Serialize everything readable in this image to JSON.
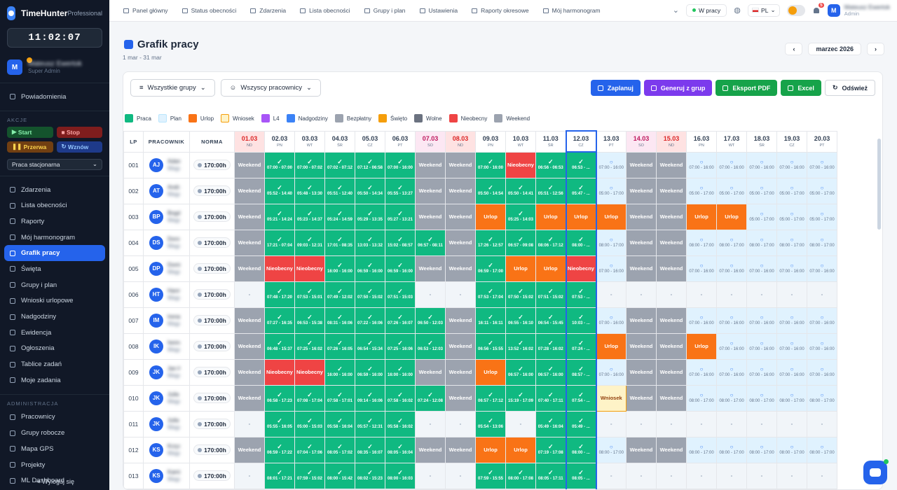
{
  "app": {
    "name": "TimeHunter",
    "plan": "Professional",
    "clock": "11:02:07"
  },
  "user": {
    "initial": "M",
    "name": "Mateusz Ewertok",
    "role": "Super Admin",
    "top_role": "Admin"
  },
  "sidebar": {
    "notifications": "Powiadomienia",
    "actions_header": "AKCJE",
    "actions": [
      "Start",
      "Stop",
      "Przerwa",
      "Wznów"
    ],
    "work_mode": "Praca stacjonarna",
    "items": [
      "Zdarzenia",
      "Lista obecności",
      "Raporty",
      "Mój harmonogram",
      "Grafik pracy",
      "Święta",
      "Grupy i plan",
      "Wnioski urlopowe",
      "Nadgodziny",
      "Ewidencja",
      "Ogłoszenia",
      "Tablice zadań",
      "Moje zadania"
    ],
    "admin_header": "ADMINISTRACJA",
    "admin_items": [
      "Pracownicy",
      "Grupy robocze",
      "Mapa GPS",
      "Projekty",
      "ML Dashboard"
    ],
    "logout": "Wyloguj się"
  },
  "topnav": [
    "Panel główny",
    "Status obecności",
    "Zdarzenia",
    "Lista obecności",
    "Grupy i plan",
    "Ustawienia",
    "Raporty okresowe",
    "Mój harmonogram"
  ],
  "status": "W pracy",
  "lang": "PL",
  "notif_count": "5",
  "page": {
    "title": "Grafik pracy",
    "range": "1 mar - 31 mar",
    "month": "marzec 2026"
  },
  "filters": {
    "groups": "Wszystkie grupy",
    "employees": "Wszyscy pracownicy"
  },
  "buttons": {
    "plan": "Zaplanuj",
    "gen": "Generuj z grup",
    "pdf": "Eksport PDF",
    "excel": "Excel",
    "refresh": "Odśwież"
  },
  "legend": [
    "Praca",
    "Plan",
    "Urlop",
    "Wniosek",
    "L4",
    "Nadgodziny",
    "Bezpłatny",
    "Święto",
    "Wolne",
    "Nieobecny",
    "Weekend"
  ],
  "legend_colors": [
    "#10b981",
    "#e0f2fe",
    "#f97316",
    "#fef3c7",
    "#a855f7",
    "#3b82f6",
    "#9ca3af",
    "#f59e0b",
    "#6b7280",
    "#ef4444",
    "#9ca3af"
  ],
  "columns": {
    "lp": "LP",
    "emp": "PRACOWNIK",
    "norm": "NORMA"
  },
  "days": [
    {
      "d": "01.03",
      "n": "ND",
      "t": "hol"
    },
    {
      "d": "02.03",
      "n": "PN",
      "t": ""
    },
    {
      "d": "03.03",
      "n": "WT",
      "t": ""
    },
    {
      "d": "04.03",
      "n": "ŚR",
      "t": ""
    },
    {
      "d": "05.03",
      "n": "CZ",
      "t": ""
    },
    {
      "d": "06.03",
      "n": "PT",
      "t": ""
    },
    {
      "d": "07.03",
      "n": "SO",
      "t": "wkd"
    },
    {
      "d": "08.03",
      "n": "ND",
      "t": "hol"
    },
    {
      "d": "09.03",
      "n": "PN",
      "t": ""
    },
    {
      "d": "10.03",
      "n": "WT",
      "t": ""
    },
    {
      "d": "11.03",
      "n": "ŚR",
      "t": ""
    },
    {
      "d": "12.03",
      "n": "CZ",
      "t": "tod"
    },
    {
      "d": "13.03",
      "n": "PT",
      "t": ""
    },
    {
      "d": "14.03",
      "n": "SO",
      "t": "wkd"
    },
    {
      "d": "15.03",
      "n": "ND",
      "t": "hol"
    },
    {
      "d": "16.03",
      "n": "PN",
      "t": ""
    },
    {
      "d": "17.03",
      "n": "WT",
      "t": ""
    },
    {
      "d": "18.03",
      "n": "ŚR",
      "t": ""
    },
    {
      "d": "19.03",
      "n": "CZ",
      "t": ""
    },
    {
      "d": "20.03",
      "n": "PT",
      "t": ""
    }
  ],
  "rows": [
    {
      "lp": "001",
      "ini": "AJ",
      "name": "Adam Jaski",
      "sub": "Magazyn 01 ·",
      "norm": "170:00h",
      "cells": [
        "Weekend",
        "W|07:00 - 07:00",
        "W|07:00 - 07:02",
        "W|07:02 - 07:12",
        "W|07:12 - 06:58",
        "W|07:00 - 16:00",
        "Weekend",
        "Weekend",
        "W|07:00 - 16:00",
        "Nieobecny",
        "W|06:56 - 06:53",
        "W|06:53 - ...",
        "P|07:00 - 16:00",
        "Weekend",
        "Weekend",
        "P|07:00 - 16:00",
        "P|07:00 - 16:00",
        "P|07:00 - 16:00",
        "P|07:00 - 16:00",
        "P|07:00 - 16:00"
      ]
    },
    {
      "lp": "002",
      "ini": "AT",
      "name": "Andrzej Trzaskowski",
      "sub": "Magazyn 02 ·",
      "norm": "170:00h",
      "cells": [
        "Weekend",
        "W|05:52 - 14:40",
        "W|05:48 - 13:30",
        "W|05:51 - 12:40",
        "W|05:50 - 14:34",
        "W|05:55 - 13:27",
        "Weekend",
        "Weekend",
        "W|05:50 - 14:54",
        "W|05:50 - 14:41",
        "W|05:51 - 12:56",
        "W|05:47 - ...",
        "P|05:00 - 17:00",
        "Weekend",
        "Weekend",
        "P|05:00 - 17:00",
        "P|05:00 - 17:00",
        "P|05:00 - 17:00",
        "P|05:00 - 17:00",
        "P|05:00 - 17:00"
      ]
    },
    {
      "lp": "003",
      "ini": "BP",
      "name": "Bogdan Pietrzak",
      "sub": "Magazyn 01 ·",
      "norm": "170:00h",
      "cells": [
        "Weekend",
        "W|05:21 - 14:24",
        "W|05:23 - 14:37",
        "W|05:24 - 14:59",
        "W|05:29 - 13:35",
        "W|05:27 - 13:21",
        "Weekend",
        "Weekend",
        "Urlop",
        "W|05:25 - 14:03",
        "Urlop",
        "Urlop",
        "Urlop",
        "Weekend",
        "Weekend",
        "Urlop",
        "Urlop",
        "P|05:00 - 17:00",
        "P|05:00 - 17:00",
        "P|05:00 - 17:00"
      ]
    },
    {
      "lp": "004",
      "ini": "DS",
      "name": "Dorota Sobczyk",
      "sub": "Magazyn 02 ·",
      "norm": "170:00h",
      "cells": [
        "Weekend",
        "W|17:21 - 07:04",
        "W|09:03 - 12:31",
        "W|17:01 - 08:35",
        "W|13:03 - 13:32",
        "W|15:02 - 08:57",
        "W|06:57 - 08:11",
        "Weekend",
        "W|17:26 - 12:57",
        "W|06:57 - 09:08",
        "W|08:06 - 17:12",
        "W|08:00 - ...",
        "P|08:00 - 17:00",
        "Weekend",
        "Weekend",
        "P|08:00 - 17:00",
        "P|08:00 - 17:00",
        "P|08:00 - 17:00",
        "P|08:00 - 17:00",
        "P|08:00 - 17:00"
      ]
    },
    {
      "lp": "005",
      "ini": "DP",
      "name": "Dominik Pergi",
      "sub": "Magazyn 01 ·",
      "norm": "170:00h",
      "cells": [
        "Weekend",
        "Nieobecny",
        "Nieobecny",
        "W|16:00 - 16:00",
        "W|06:59 - 16:00",
        "W|06:59 - 16:00",
        "Weekend",
        "Weekend",
        "W|06:59 - 17:00",
        "Urlop",
        "Urlop",
        "Nieobecny",
        "P|07:00 - 16:00",
        "Weekend",
        "Weekend",
        "P|07:00 - 16:00",
        "P|07:00 - 16:00",
        "P|07:00 - 16:00",
        "P|07:00 - 16:00",
        "P|07:00 - 16:00"
      ]
    },
    {
      "lp": "006",
      "ini": "HT",
      "name": "Hanna Tadeusz",
      "sub": "Magazyn 02 ·",
      "norm": "170:00h",
      "cells": [
        "-",
        "W|07:48 - 17:20",
        "W|07:53 - 15:01",
        "W|07:49 - 12:02",
        "W|07:50 - 15:02",
        "W|07:51 - 15:03",
        "-",
        "-",
        "W|07:53 - 17:04",
        "W|07:50 - 15:02",
        "W|07:51 - 15:02",
        "W|07:53 - ...",
        "-",
        "-",
        "-",
        "-",
        "-",
        "-",
        "-",
        "-"
      ]
    },
    {
      "lp": "007",
      "ini": "IM",
      "name": "Irena Marchwia",
      "sub": "Magazyn 01 ·",
      "norm": "170:00h",
      "cells": [
        "Weekend",
        "W|07:27 - 16:35",
        "W|06:53 - 15:38",
        "W|08:31 - 16:06",
        "W|07:22 - 16:06",
        "W|07:26 - 16:07",
        "W|06:50 - 12:03",
        "Weekend",
        "W|16:11 - 16:11",
        "W|06:55 - 16:10",
        "W|06:54 - 15:45",
        "W|10:03 - ...",
        "P|07:00 - 16:00",
        "Weekend",
        "Weekend",
        "P|07:00 - 16:00",
        "P|07:00 - 16:00",
        "P|07:00 - 16:00",
        "P|07:00 - 16:00",
        "P|07:00 - 16:00"
      ]
    },
    {
      "lp": "008",
      "ini": "IK",
      "name": "Iwona Kowalska",
      "sub": "Magazyn 02 ·",
      "norm": "170:00h",
      "cells": [
        "Weekend",
        "W|06:48 - 15:37",
        "W|07:25 - 16:02",
        "W|07:26 - 16:05",
        "W|06:54 - 15:34",
        "W|07:25 - 16:06",
        "W|06:53 - 12:03",
        "Weekend",
        "W|06:56 - 15:55",
        "W|13:52 - 16:02",
        "W|07:28 - 16:02",
        "W|07:24 - ...",
        "Urlop",
        "Weekend",
        "Weekend",
        "Urlop",
        "P|07:00 - 16:00",
        "P|07:00 - 16:00",
        "P|07:00 - 16:00",
        "P|07:00 - 16:00"
      ]
    },
    {
      "lp": "009",
      "ini": "JK",
      "name": "Jan Kowalczyk",
      "sub": "Magazyn 01 ·",
      "norm": "170:00h",
      "cells": [
        "Weekend",
        "Nieobecny",
        "Nieobecny",
        "W|16:00 - 16:00",
        "W|06:59 - 16:00",
        "W|16:00 - 16:00",
        "Weekend",
        "Weekend",
        "Urlop",
        "W|06:57 - 16:00",
        "W|06:57 - 16:00",
        "W|08:57 - ...",
        "P|07:00 - 16:00",
        "Weekend",
        "Weekend",
        "P|07:00 - 16:00",
        "P|07:00 - 16:00",
        "P|07:00 - 16:00",
        "P|07:00 - 16:00",
        "P|07:00 - 16:00"
      ]
    },
    {
      "lp": "010",
      "ini": "JK",
      "name": "Julia Kowalewska",
      "sub": "Magazyn 02 ·",
      "norm": "170:00h",
      "cells": [
        "Weekend",
        "W|06:58 - 17:23",
        "W|07:08 - 17:04",
        "W|07:58 - 17:01",
        "W|09:14 - 16:06",
        "W|07:58 - 16:02",
        "W|07:24 - 12:08",
        "Weekend",
        "W|06:57 - 17:12",
        "W|15:19 - 17:09",
        "W|07:40 - 17:11",
        "W|07:54 - ...",
        "Wniosek",
        "Weekend",
        "Weekend",
        "P|08:00 - 17:00",
        "P|08:00 - 17:00",
        "P|08:00 - 17:00",
        "P|08:00 - 17:00",
        "P|08:00 - 17:00"
      ]
    },
    {
      "lp": "011",
      "ini": "JK",
      "name": "Julia Kozak",
      "sub": "Magazyn 01 ·",
      "norm": "170:00h",
      "cells": [
        "-",
        "W|05:55 - 16:05",
        "W|05:00 - 15:03",
        "W|05:58 - 16:04",
        "W|05:57 - 12:31",
        "W|05:58 - 16:02",
        "-",
        "-",
        "W|05:54 - 13:06",
        "-",
        "W|05:49 - 16:04",
        "W|05:49 - ...",
        "-",
        "-",
        "-",
        "-",
        "-",
        "-",
        "-",
        "-"
      ]
    },
    {
      "lp": "012",
      "ini": "KS",
      "name": "Krzysztof Sienkiewicz",
      "sub": "Magazyn 02 ·",
      "norm": "170:00h",
      "cells": [
        "Weekend",
        "W|06:59 - 17:22",
        "W|07:04 - 17:06",
        "W|08:05 - 17:02",
        "W|08:35 - 16:07",
        "W|08:05 - 16:04",
        "Weekend",
        "Weekend",
        "Urlop",
        "Urlop",
        "W|07:19 - 17:08",
        "W|08:00 - ...",
        "P|08:00 - 17:00",
        "Weekend",
        "Weekend",
        "P|08:00 - 17:00",
        "P|08:00 - 17:00",
        "P|08:00 - 17:00",
        "P|08:00 - 17:00",
        "P|08:00 - 17:00"
      ]
    },
    {
      "lp": "013",
      "ini": "KS",
      "name": "Kamil Sokolsky",
      "sub": "Magazyn 01 ·",
      "norm": "170:00h",
      "cells": [
        "-",
        "W|08:01 - 17:21",
        "W|07:59 - 15:02",
        "W|08:00 - 15:42",
        "W|08:02 - 15:23",
        "W|08:00 - 16:03",
        "-",
        "-",
        "W|07:59 - 15:55",
        "W|08:00 - 17:08",
        "W|08:05 - 17:11",
        "W|08:05 - ...",
        "-",
        "-",
        "-",
        "-",
        "-",
        "-",
        "-",
        "-"
      ]
    }
  ]
}
